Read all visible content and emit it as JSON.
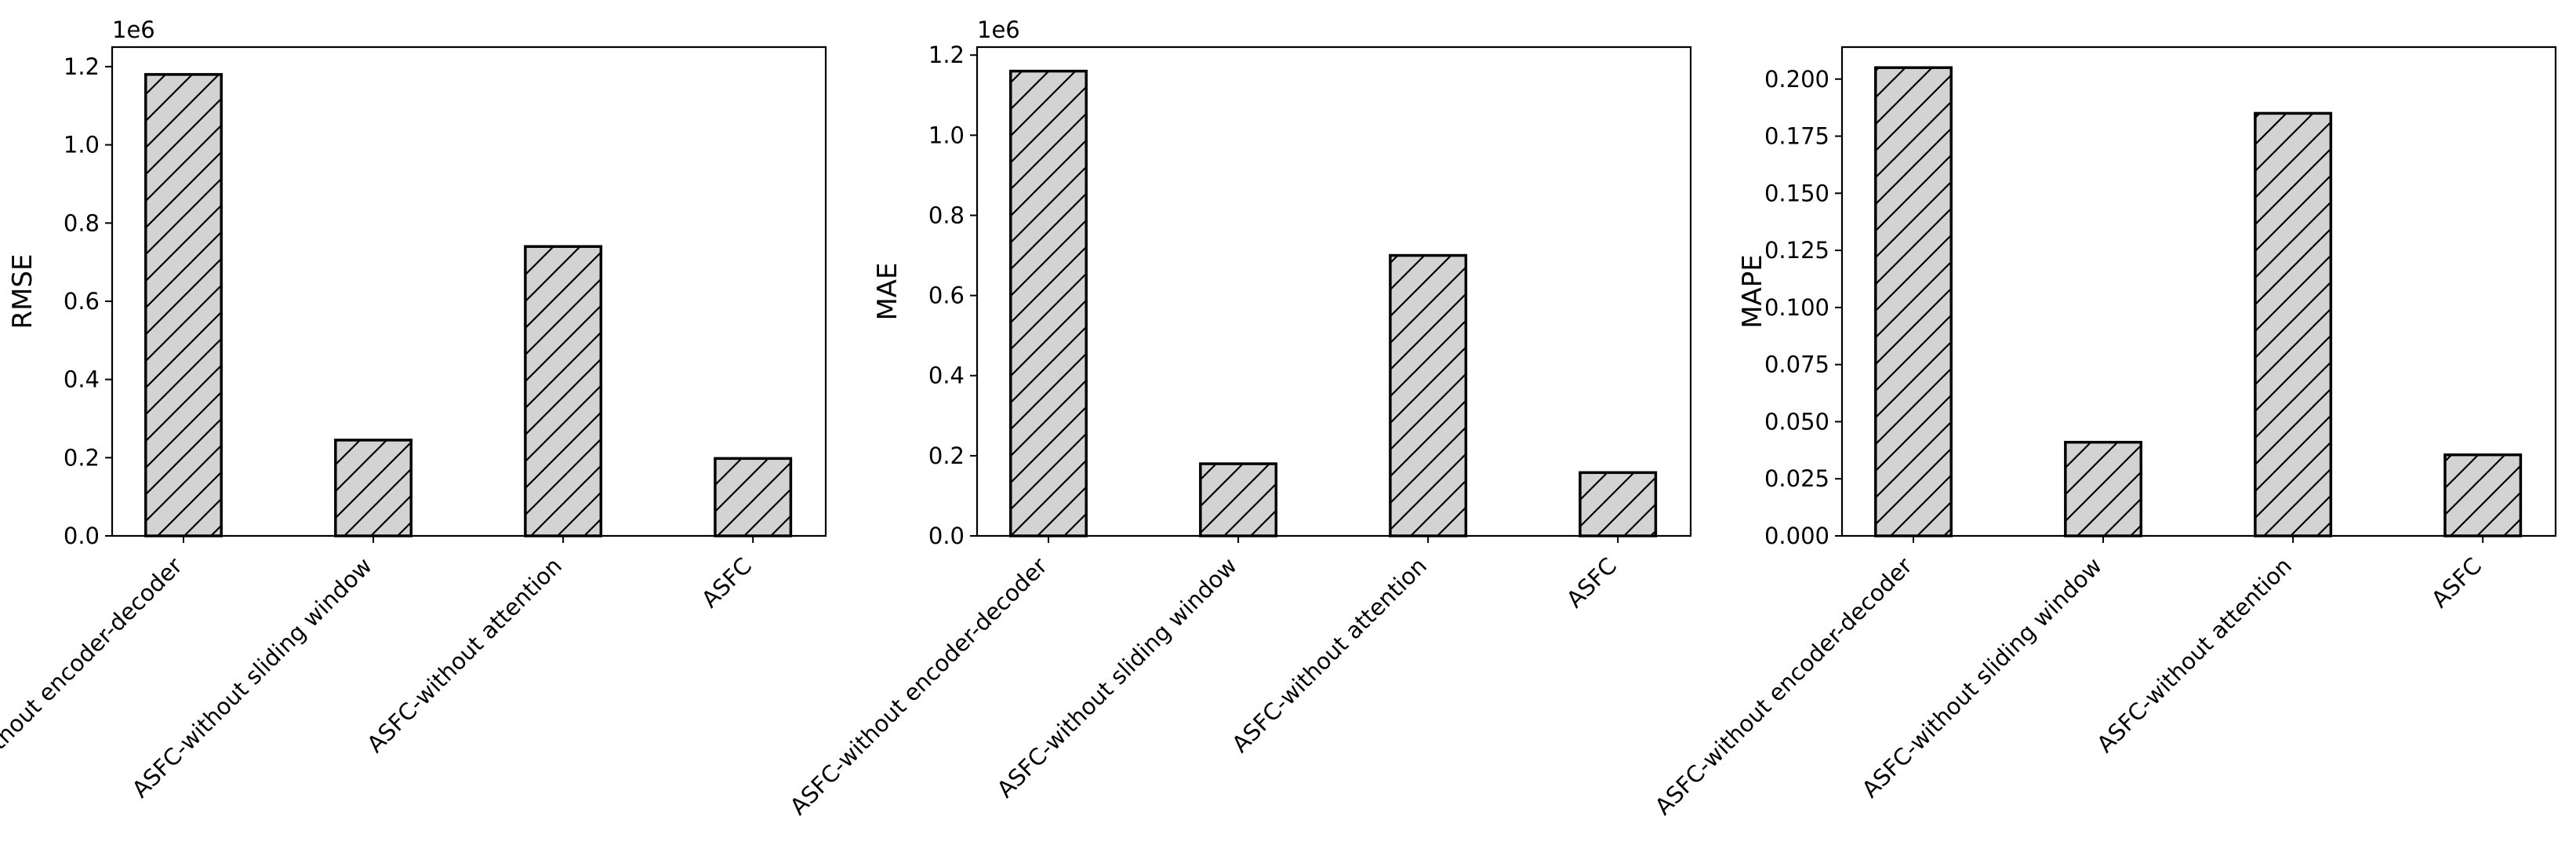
{
  "chart_data": [
    {
      "type": "bar",
      "title": "",
      "categories": [
        "ASFC-without encoder-decoder",
        "ASFC-without sliding window",
        "ASFC-without attention",
        "ASFC"
      ],
      "values": [
        1180000,
        245000,
        740000,
        198000
      ],
      "xlabel": "",
      "ylabel": "RMSE",
      "ylim": [
        0,
        1250000
      ],
      "yticks": [
        0,
        200000,
        400000,
        600000,
        800000,
        1000000,
        1200000
      ],
      "ytick_labels": [
        "0.0",
        "0.2",
        "0.4",
        "0.6",
        "0.8",
        "1.0",
        "1.2"
      ],
      "offset_label": "1e6",
      "grid": false,
      "legend": "none"
    },
    {
      "type": "bar",
      "title": "",
      "categories": [
        "ASFC-without encoder-decoder",
        "ASFC-without sliding window",
        "ASFC-without attention",
        "ASFC"
      ],
      "values": [
        1160000,
        180000,
        700000,
        158000
      ],
      "xlabel": "",
      "ylabel": "MAE",
      "ylim": [
        0,
        1220000
      ],
      "yticks": [
        0,
        200000,
        400000,
        600000,
        800000,
        1000000,
        1200000
      ],
      "ytick_labels": [
        "0.0",
        "0.2",
        "0.4",
        "0.6",
        "0.8",
        "1.0",
        "1.2"
      ],
      "offset_label": "1e6",
      "grid": false,
      "legend": "none"
    },
    {
      "type": "bar",
      "title": "",
      "categories": [
        "ASFC-without encoder-decoder",
        "ASFC-without sliding window",
        "ASFC-without attention",
        "ASFC"
      ],
      "values": [
        0.205,
        0.041,
        0.185,
        0.0355
      ],
      "xlabel": "",
      "ylabel": "MAPE",
      "ylim": [
        0,
        0.214
      ],
      "yticks": [
        0,
        0.025,
        0.05,
        0.075,
        0.1,
        0.125,
        0.15,
        0.175,
        0.2
      ],
      "ytick_labels": [
        "0.000",
        "0.025",
        "0.050",
        "0.075",
        "0.100",
        "0.125",
        "0.150",
        "0.175",
        "0.200"
      ],
      "offset_label": "",
      "grid": false,
      "legend": "none"
    }
  ],
  "colors": {
    "bar_fill": "#d3d3d3",
    "bar_edge": "#000000",
    "hatch": "#000000",
    "axis": "#000000"
  }
}
